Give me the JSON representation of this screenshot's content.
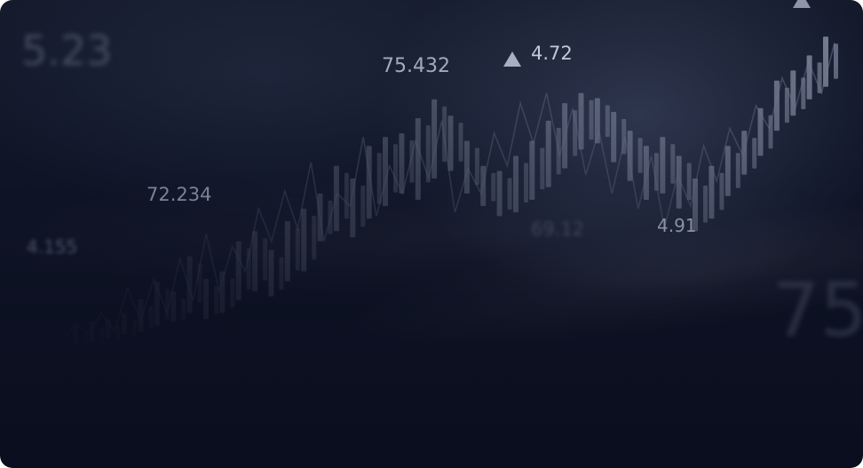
{
  "price_labels": {
    "label_1": "5.23",
    "label_2": "75.432",
    "label_3": "4.72",
    "label_4": "72.234",
    "label_5": "4.155",
    "label_6": "69.12",
    "label_7": "4.91",
    "label_8": "75"
  },
  "colors": {
    "background": "#0e1325",
    "candle": "#8a92a8",
    "line": "#5a6380",
    "text": "#c7ccd8"
  },
  "chart_data": {
    "type": "bar",
    "xlabel": "",
    "ylabel": "",
    "categories": [],
    "candles": [
      {
        "x": 1,
        "low": 180,
        "high": 195
      },
      {
        "x": 2,
        "low": 182,
        "high": 198
      },
      {
        "x": 3,
        "low": 185,
        "high": 200
      },
      {
        "x": 4,
        "low": 188,
        "high": 205
      },
      {
        "x": 5,
        "low": 190,
        "high": 216
      },
      {
        "x": 6,
        "low": 195,
        "high": 230
      },
      {
        "x": 7,
        "low": 198,
        "high": 222
      },
      {
        "x": 8,
        "low": 205,
        "high": 250
      },
      {
        "x": 9,
        "low": 200,
        "high": 232
      },
      {
        "x": 10,
        "low": 205,
        "high": 238
      },
      {
        "x": 11,
        "low": 215,
        "high": 262
      },
      {
        "x": 12,
        "low": 222,
        "high": 270
      },
      {
        "x": 13,
        "low": 218,
        "high": 255
      },
      {
        "x": 14,
        "low": 230,
        "high": 278
      },
      {
        "x": 15,
        "low": 238,
        "high": 288
      },
      {
        "x": 16,
        "low": 262,
        "high": 300
      },
      {
        "x": 17,
        "low": 270,
        "high": 322
      },
      {
        "x": 18,
        "low": 265,
        "high": 312
      },
      {
        "x": 19,
        "low": 280,
        "high": 338
      },
      {
        "x": 20,
        "low": 290,
        "high": 345
      },
      {
        "x": 21,
        "low": 300,
        "high": 348
      },
      {
        "x": 22,
        "low": 295,
        "high": 360
      },
      {
        "x": 23,
        "low": 312,
        "high": 375
      },
      {
        "x": 24,
        "low": 318,
        "high": 362
      },
      {
        "x": 25,
        "low": 300,
        "high": 342
      },
      {
        "x": 26,
        "low": 290,
        "high": 322
      },
      {
        "x": 27,
        "low": 282,
        "high": 318
      },
      {
        "x": 28,
        "low": 285,
        "high": 330
      },
      {
        "x": 29,
        "low": 295,
        "high": 342
      },
      {
        "x": 30,
        "low": 305,
        "high": 358
      },
      {
        "x": 31,
        "low": 320,
        "high": 372
      },
      {
        "x": 32,
        "low": 335,
        "high": 380
      },
      {
        "x": 33,
        "low": 340,
        "high": 376
      },
      {
        "x": 34,
        "low": 325,
        "high": 365
      },
      {
        "x": 35,
        "low": 310,
        "high": 350
      },
      {
        "x": 36,
        "low": 295,
        "high": 338
      },
      {
        "x": 37,
        "low": 300,
        "high": 345
      },
      {
        "x": 38,
        "low": 288,
        "high": 330
      },
      {
        "x": 39,
        "low": 270,
        "high": 312
      },
      {
        "x": 40,
        "low": 280,
        "high": 322
      },
      {
        "x": 41,
        "low": 298,
        "high": 338
      },
      {
        "x": 42,
        "low": 315,
        "high": 350
      },
      {
        "x": 43,
        "low": 330,
        "high": 368
      },
      {
        "x": 44,
        "low": 350,
        "high": 390
      },
      {
        "x": 45,
        "low": 362,
        "high": 398
      },
      {
        "x": 46,
        "low": 375,
        "high": 410
      },
      {
        "x": 47,
        "low": 385,
        "high": 425
      }
    ],
    "line": [
      182,
      196,
      188,
      205,
      190,
      225,
      198,
      232,
      205,
      248,
      215,
      268,
      222,
      258,
      238,
      288,
      262,
      302,
      272,
      325,
      262,
      300,
      290,
      345,
      282,
      322,
      300,
      342,
      312,
      358,
      285,
      320,
      300,
      348,
      322,
      372,
      340,
      380,
      330,
      368,
      315,
      350,
      300,
      345,
      288,
      330,
      272,
      315,
      290,
      338,
      310,
      352,
      330,
      370,
      352,
      392,
      368,
      405,
      380,
      420
    ]
  }
}
